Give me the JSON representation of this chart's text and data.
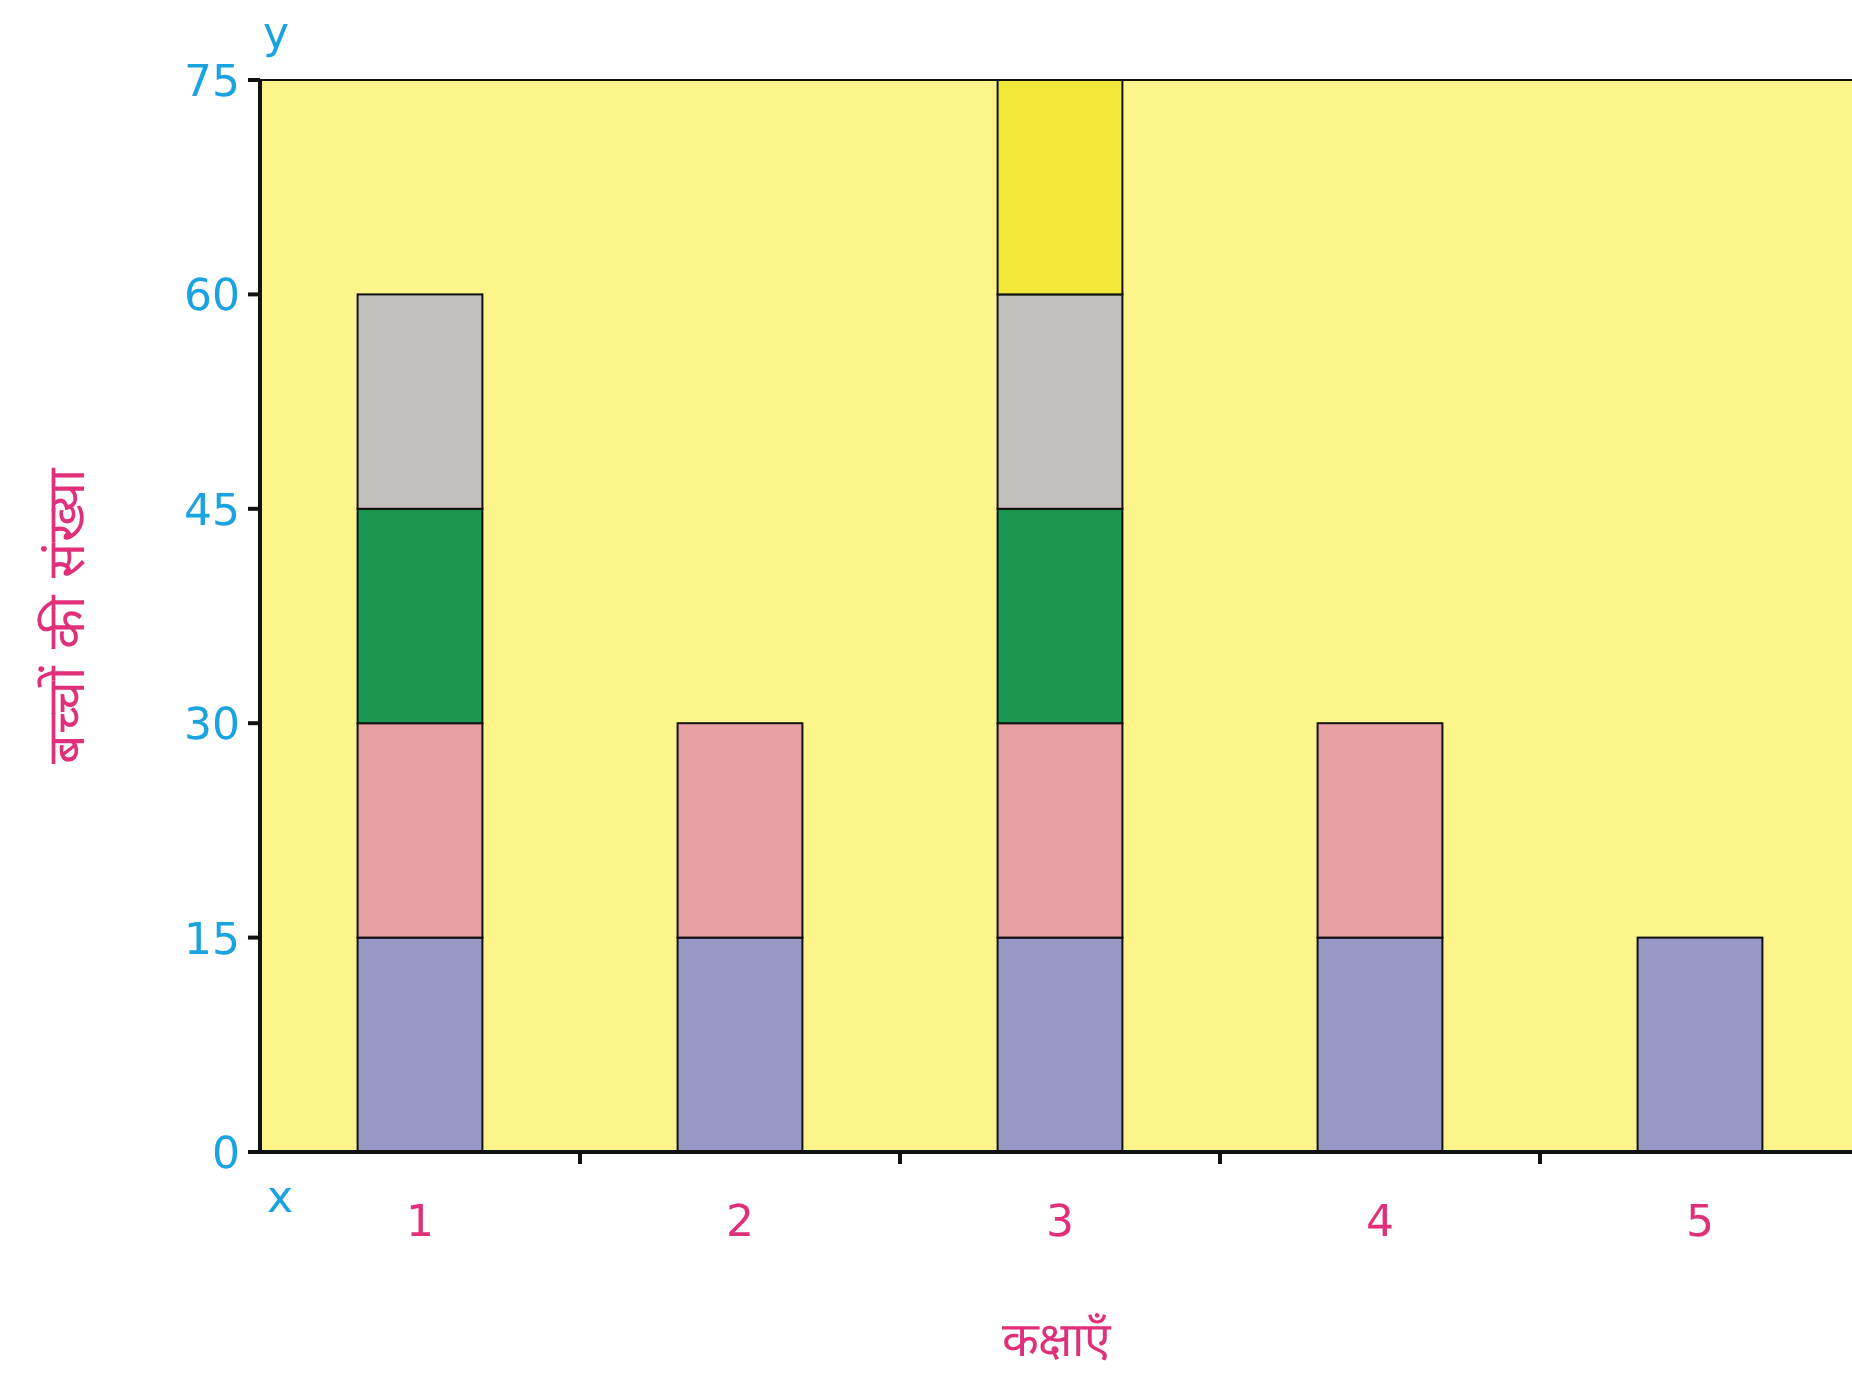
{
  "chart_data": {
    "type": "bar",
    "stacked": true,
    "xlabel": "कक्षाएँ",
    "ylabel": "बच्चों की संख्या",
    "annotations": [
      "y",
      "x"
    ],
    "categories": [
      "1",
      "2",
      "3",
      "4",
      "5"
    ],
    "series": [
      {
        "color": "#9999c8",
        "values": [
          15,
          15,
          15,
          15,
          15
        ]
      },
      {
        "color": "#e8a0a4",
        "values": [
          15,
          15,
          15,
          15,
          null
        ]
      },
      {
        "color": "#1a9850",
        "values": [
          15,
          null,
          15,
          null,
          null
        ]
      },
      {
        "color": "#c4c0bd",
        "values": [
          15,
          null,
          15,
          null,
          null
        ]
      },
      {
        "color": "#f2e83a",
        "values": [
          null,
          null,
          15,
          null,
          null
        ]
      }
    ],
    "ylim": [
      0,
      75
    ],
    "yticks": [
      0,
      15,
      30,
      45,
      60,
      75
    ],
    "grid": false
  }
}
